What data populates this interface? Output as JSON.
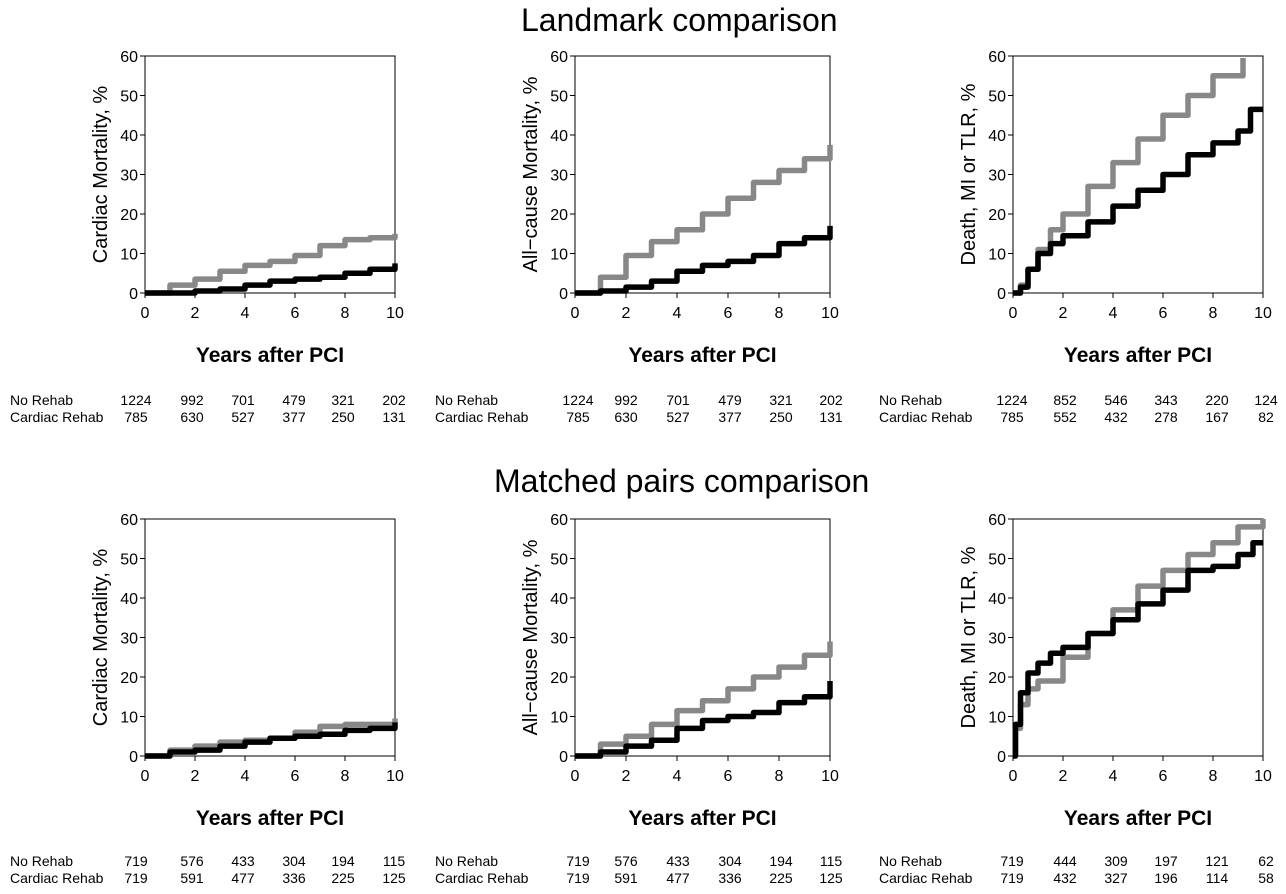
{
  "titles": {
    "top": "Landmark comparison",
    "bottom": "Matched pairs comparison"
  },
  "colors": {
    "no_rehab": "#888888",
    "cardiac_rehab": "#000000"
  },
  "chart_data": [
    {
      "type": "line",
      "panel": "landmark-cardiac-mortality",
      "xlabel": "Years after PCI",
      "ylabel": "Cardiac Mortality, %",
      "xlim": [
        0,
        10
      ],
      "ylim": [
        0,
        60
      ],
      "xticks": [
        0,
        2,
        4,
        6,
        8,
        10
      ],
      "yticks": [
        0,
        10,
        20,
        30,
        40,
        50,
        60
      ],
      "series": [
        {
          "key": "no_rehab",
          "x": [
            0,
            1,
            2,
            3,
            4,
            5,
            6,
            7,
            8,
            9,
            10
          ],
          "y": [
            0,
            2,
            3.5,
            5.5,
            7,
            8,
            9.5,
            12,
            13.5,
            14,
            15
          ]
        },
        {
          "key": "cardiac_rehab",
          "x": [
            0,
            1,
            2,
            3,
            4,
            5,
            6,
            7,
            8,
            9,
            10
          ],
          "y": [
            0,
            0,
            0.5,
            1,
            2,
            3,
            3.5,
            4,
            5,
            6,
            7.5
          ]
        }
      ],
      "risk_table": {
        "rows": [
          {
            "label": "No Rehab",
            "values": [
              "1224",
              "992",
              "701",
              "479",
              "321",
              "202"
            ]
          },
          {
            "label": "Cardiac Rehab",
            "values": [
              "785",
              "630",
              "527",
              "377",
              "250",
              "131"
            ]
          }
        ]
      }
    },
    {
      "type": "line",
      "panel": "landmark-allcause-mortality",
      "xlabel": "Years after PCI",
      "ylabel": "All−cause Mortality, %",
      "xlim": [
        0,
        10
      ],
      "ylim": [
        0,
        60
      ],
      "xticks": [
        0,
        2,
        4,
        6,
        8,
        10
      ],
      "yticks": [
        0,
        10,
        20,
        30,
        40,
        50,
        60
      ],
      "series": [
        {
          "key": "no_rehab",
          "x": [
            0,
            1,
            2,
            3,
            4,
            5,
            6,
            7,
            8,
            9,
            10
          ],
          "y": [
            0,
            4,
            9.5,
            13,
            16,
            20,
            24,
            28,
            31,
            34,
            37.5
          ]
        },
        {
          "key": "cardiac_rehab",
          "x": [
            0,
            1,
            2,
            3,
            4,
            5,
            6,
            7,
            8,
            9,
            10
          ],
          "y": [
            0,
            0.5,
            1.5,
            3,
            5.5,
            7,
            8,
            9.5,
            12.5,
            14,
            17
          ]
        }
      ],
      "risk_table": {
        "rows": [
          {
            "label": "No Rehab",
            "values": [
              "1224",
              "992",
              "701",
              "479",
              "321",
              "202"
            ]
          },
          {
            "label": "Cardiac Rehab",
            "values": [
              "785",
              "630",
              "527",
              "377",
              "250",
              "131"
            ]
          }
        ]
      }
    },
    {
      "type": "line",
      "panel": "landmark-death-mi-tlr",
      "xlabel": "Years after PCI",
      "ylabel": "Death, MI or TLR, %",
      "xlim": [
        0,
        10
      ],
      "ylim": [
        0,
        60
      ],
      "xticks": [
        0,
        2,
        4,
        6,
        8,
        10
      ],
      "yticks": [
        0,
        10,
        20,
        30,
        40,
        50,
        60
      ],
      "series": [
        {
          "key": "no_rehab",
          "x": [
            0,
            0.3,
            0.6,
            1,
            1.5,
            2,
            3,
            4,
            5,
            6,
            7,
            8,
            9.2
          ],
          "y": [
            0,
            2,
            6,
            11,
            16,
            20,
            27,
            33,
            39,
            45,
            50,
            55,
            59.5
          ]
        },
        {
          "key": "cardiac_rehab",
          "x": [
            0,
            0.3,
            0.6,
            1,
            1.5,
            2,
            3,
            4,
            5,
            6,
            7,
            8,
            9,
            9.5,
            10
          ],
          "y": [
            0,
            1.5,
            6,
            10,
            12.5,
            14.5,
            18,
            22,
            26,
            30,
            35,
            38,
            41,
            46.5,
            46.5
          ]
        }
      ],
      "risk_table": {
        "rows": [
          {
            "label": "No Rehab",
            "values": [
              "1224",
              "852",
              "546",
              "343",
              "220",
              "124"
            ]
          },
          {
            "label": "Cardiac Rehab",
            "values": [
              "785",
              "552",
              "432",
              "278",
              "167",
              "82"
            ]
          }
        ]
      }
    },
    {
      "type": "line",
      "panel": "matched-cardiac-mortality",
      "xlabel": "Years after PCI",
      "ylabel": "Cardiac Mortality, %",
      "xlim": [
        0,
        10
      ],
      "ylim": [
        0,
        60
      ],
      "xticks": [
        0,
        2,
        4,
        6,
        8,
        10
      ],
      "yticks": [
        0,
        10,
        20,
        30,
        40,
        50,
        60
      ],
      "series": [
        {
          "key": "no_rehab",
          "x": [
            0,
            1,
            2,
            3,
            4,
            5,
            6,
            7,
            8,
            9,
            10
          ],
          "y": [
            0,
            1.5,
            2.5,
            3.5,
            4,
            4.5,
            6,
            7.5,
            8,
            8,
            9.5
          ]
        },
        {
          "key": "cardiac_rehab",
          "x": [
            0,
            1,
            2,
            3,
            4,
            5,
            6,
            7,
            8,
            9,
            10
          ],
          "y": [
            0,
            1,
            1.5,
            2.5,
            3.5,
            4.5,
            5,
            5.5,
            6.5,
            7,
            8.5
          ]
        }
      ],
      "risk_table": {
        "rows": [
          {
            "label": "No Rehab",
            "values": [
              "719",
              "576",
              "433",
              "304",
              "194",
              "115"
            ]
          },
          {
            "label": "Cardiac Rehab",
            "values": [
              "719",
              "591",
              "477",
              "336",
              "225",
              "125"
            ]
          }
        ]
      }
    },
    {
      "type": "line",
      "panel": "matched-allcause-mortality",
      "xlabel": "Years after PCI",
      "ylabel": "All−cause Mortality, %",
      "xlim": [
        0,
        10
      ],
      "ylim": [
        0,
        60
      ],
      "xticks": [
        0,
        2,
        4,
        6,
        8,
        10
      ],
      "yticks": [
        0,
        10,
        20,
        30,
        40,
        50,
        60
      ],
      "series": [
        {
          "key": "no_rehab",
          "x": [
            0,
            1,
            2,
            3,
            4,
            5,
            6,
            7,
            8,
            9,
            10
          ],
          "y": [
            0,
            3,
            5,
            8,
            11.5,
            14,
            17,
            20,
            22.5,
            25.5,
            29
          ]
        },
        {
          "key": "cardiac_rehab",
          "x": [
            0,
            1,
            2,
            3,
            4,
            5,
            6,
            7,
            8,
            9,
            10
          ],
          "y": [
            0,
            1,
            2.5,
            4,
            7,
            9,
            10,
            11,
            13.5,
            15,
            19
          ]
        }
      ],
      "risk_table": {
        "rows": [
          {
            "label": "No Rehab",
            "values": [
              "719",
              "576",
              "433",
              "304",
              "194",
              "115"
            ]
          },
          {
            "label": "Cardiac Rehab",
            "values": [
              "719",
              "591",
              "477",
              "336",
              "225",
              "125"
            ]
          }
        ]
      }
    },
    {
      "type": "line",
      "panel": "matched-death-mi-tlr",
      "xlabel": "Years after PCI",
      "ylabel": "Death, MI or TLR, %",
      "xlim": [
        0,
        10
      ],
      "ylim": [
        0,
        60
      ],
      "xticks": [
        0,
        2,
        4,
        6,
        8,
        10
      ],
      "yticks": [
        0,
        10,
        20,
        30,
        40,
        50,
        60
      ],
      "series": [
        {
          "key": "no_rehab",
          "x": [
            0,
            0.1,
            0.3,
            0.6,
            1,
            2,
            3,
            4,
            5,
            6,
            7,
            8,
            9,
            10
          ],
          "y": [
            0,
            7,
            13,
            17,
            19,
            25,
            31,
            37,
            43,
            47,
            51,
            54,
            58,
            60
          ]
        },
        {
          "key": "cardiac_rehab",
          "x": [
            0,
            0.1,
            0.3,
            0.6,
            1,
            1.5,
            2,
            3,
            4,
            5,
            6,
            7,
            8,
            9,
            9.6,
            10
          ],
          "y": [
            0,
            8,
            16,
            21,
            23.5,
            26,
            27.5,
            31,
            34.5,
            38.5,
            42,
            47,
            48,
            51,
            54,
            54
          ]
        }
      ],
      "risk_table": {
        "rows": [
          {
            "label": "No Rehab",
            "values": [
              "719",
              "444",
              "309",
              "197",
              "121",
              "62"
            ]
          },
          {
            "label": "Cardiac Rehab",
            "values": [
              "719",
              "432",
              "327",
              "196",
              "114",
              "58"
            ]
          }
        ]
      }
    }
  ]
}
